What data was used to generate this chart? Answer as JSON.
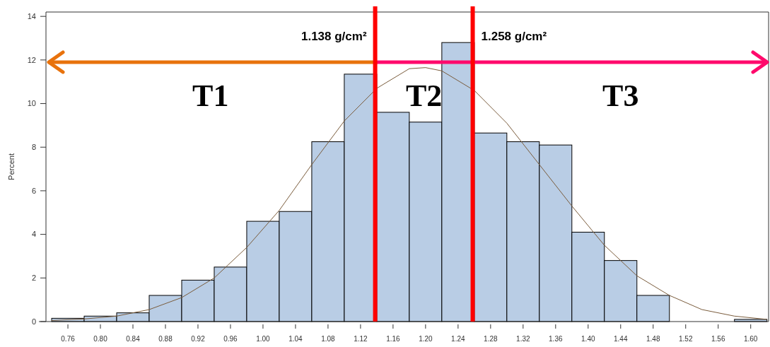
{
  "chart_data": {
    "type": "histogram",
    "ylabel": "Percent",
    "bins": [
      0.74,
      0.78,
      0.82,
      0.86,
      0.9,
      0.94,
      0.98,
      1.02,
      1.06,
      1.1,
      1.14,
      1.18,
      1.22,
      1.26,
      1.3,
      1.34,
      1.38,
      1.42,
      1.46,
      1.5,
      1.54,
      1.58,
      1.62
    ],
    "values": [
      0.15,
      0.25,
      0.4,
      1.2,
      1.9,
      2.5,
      4.6,
      5.05,
      8.25,
      11.35,
      9.6,
      9.15,
      12.8,
      8.65,
      8.25,
      8.1,
      4.1,
      2.8,
      1.2,
      0,
      0,
      0.1
    ],
    "color": "#b9cde5",
    "series": [
      {
        "type": "line",
        "color": "#7a5c3c",
        "x": [
          0.74,
          0.78,
          0.82,
          0.86,
          0.9,
          0.94,
          0.98,
          1.02,
          1.06,
          1.1,
          1.14,
          1.18,
          1.2,
          1.22,
          1.26,
          1.3,
          1.34,
          1.38,
          1.42,
          1.46,
          1.5,
          1.54,
          1.58,
          1.62
        ],
        "values": [
          0.05,
          0.12,
          0.25,
          0.55,
          1.1,
          2.0,
          3.4,
          5.1,
          7.2,
          9.2,
          10.7,
          11.6,
          11.65,
          11.5,
          10.6,
          9.1,
          7.2,
          5.3,
          3.5,
          2.1,
          1.2,
          0.55,
          0.25,
          0.1
        ]
      }
    ],
    "xlim": [
      0.733,
      1.622
    ],
    "ylim": [
      0,
      14.2
    ],
    "xticks": [
      0.76,
      {
        "value": 0.8,
        "label": "0.80"
      },
      0.84,
      0.88,
      0.92,
      0.96,
      {
        "value": 1.0,
        "label": "1.00"
      },
      1.04,
      1.08,
      1.12,
      1.16,
      {
        "value": 1.2,
        "label": "1.20"
      },
      1.24,
      1.28,
      1.32,
      1.36,
      {
        "value": 1.4,
        "label": "1.40"
      },
      1.44,
      1.48,
      1.52,
      1.56,
      {
        "value": 1.6,
        "label": "1.60"
      }
    ],
    "yticks": [
      0,
      2,
      4,
      6,
      8,
      10,
      12,
      14
    ],
    "ref_lines": [
      {
        "axis": "x",
        "value": 1.138,
        "label": "1.138 g/cm²",
        "color": "#ff0000"
      },
      {
        "axis": "x",
        "value": 1.258,
        "label": "1.258 g/cm²",
        "color": "#ff0000"
      }
    ],
    "annotations": [
      "T1",
      "T2",
      "T3"
    ]
  }
}
